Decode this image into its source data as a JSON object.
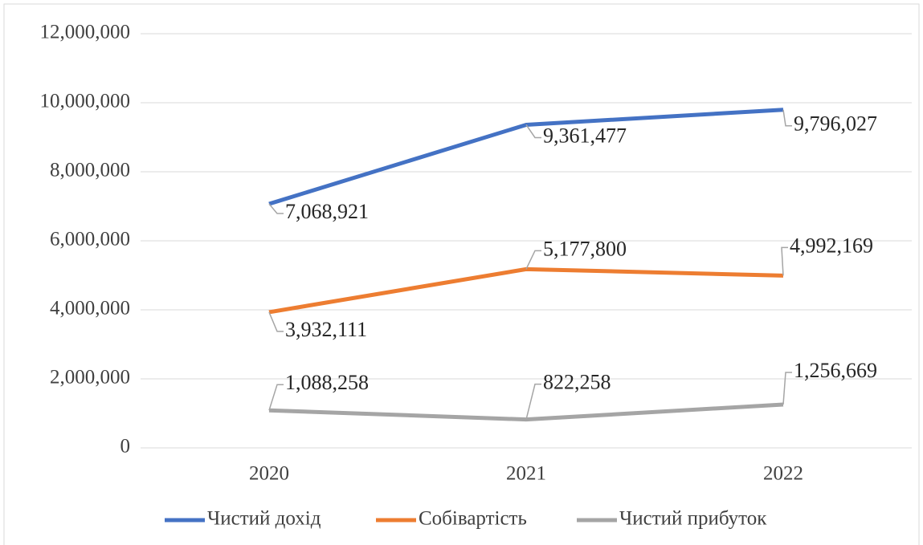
{
  "chart_data": {
    "type": "line",
    "categories": [
      "2020",
      "2021",
      "2022"
    ],
    "series": [
      {
        "name": "Чистий дохід",
        "color": "#4472c4",
        "values": [
          7068921,
          9361477,
          9796027
        ],
        "value_labels": [
          "7,068,921",
          "9,361,477",
          "9,796,027"
        ]
      },
      {
        "name": "Собівартість",
        "color": "#ed7d31",
        "values": [
          3932111,
          5177800,
          4992169
        ],
        "value_labels": [
          "3,932,111",
          "5,177,800",
          "4,992,169"
        ]
      },
      {
        "name": "Чистий прибуток",
        "color": "#a5a5a5",
        "values": [
          1088258,
          822258,
          1256669
        ],
        "value_labels": [
          "1,088,258",
          "822,258",
          "1,256,669"
        ]
      }
    ],
    "ylim": [
      0,
      12000000
    ],
    "yticks": [
      0,
      {
        "value": 2000000,
        "label": "2,000,000"
      },
      {
        "value": 4000000,
        "label": "4,000,000"
      },
      {
        "value": 6000000,
        "label": "6,000,000"
      },
      {
        "value": 8000000,
        "label": "8,000,000"
      },
      {
        "value": 10000000,
        "label": "10,000,000"
      },
      {
        "value": 12000000,
        "label": "12,000,000"
      }
    ],
    "grid": true,
    "legend": "bottom"
  }
}
